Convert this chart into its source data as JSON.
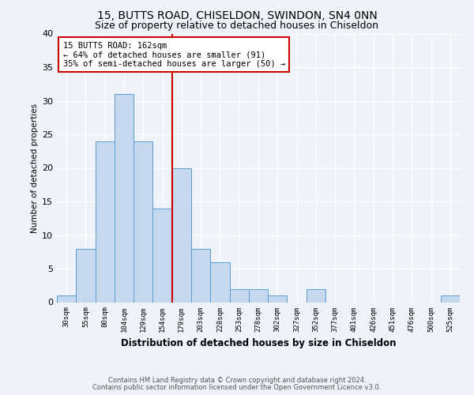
{
  "title": "15, BUTTS ROAD, CHISELDON, SWINDON, SN4 0NN",
  "subtitle": "Size of property relative to detached houses in Chiseldon",
  "xlabel": "Distribution of detached houses by size in Chiseldon",
  "ylabel": "Number of detached properties",
  "bar_labels": [
    "30sqm",
    "55sqm",
    "80sqm",
    "104sqm",
    "129sqm",
    "154sqm",
    "179sqm",
    "203sqm",
    "228sqm",
    "253sqm",
    "278sqm",
    "302sqm",
    "327sqm",
    "352sqm",
    "377sqm",
    "401sqm",
    "426sqm",
    "451sqm",
    "476sqm",
    "500sqm",
    "525sqm"
  ],
  "bar_values": [
    1,
    8,
    24,
    31,
    24,
    14,
    20,
    8,
    6,
    2,
    2,
    1,
    0,
    2,
    0,
    0,
    0,
    0,
    0,
    0,
    1
  ],
  "bar_color": "#c5d8ed",
  "bar_edge_color": "#5b9bd5",
  "annotation_box_text": "15 BUTTS ROAD: 162sqm\n← 64% of detached houses are smaller (91)\n35% of semi-detached houses are larger (50) →",
  "red_line_color": "#cc0000",
  "annotation_box_color": "#ffffff",
  "annotation_box_edge_color": "#cc0000",
  "ylim": [
    0,
    40
  ],
  "yticks": [
    0,
    5,
    10,
    15,
    20,
    25,
    30,
    35,
    40
  ],
  "footer_line1": "Contains HM Land Registry data © Crown copyright and database right 2024.",
  "footer_line2": "Contains public sector information licensed under the Open Government Licence v3.0.",
  "bg_color": "#eef2f9",
  "grid_color": "#ffffff",
  "title_fontsize": 10,
  "subtitle_fontsize": 9,
  "bar_width": 1.0
}
